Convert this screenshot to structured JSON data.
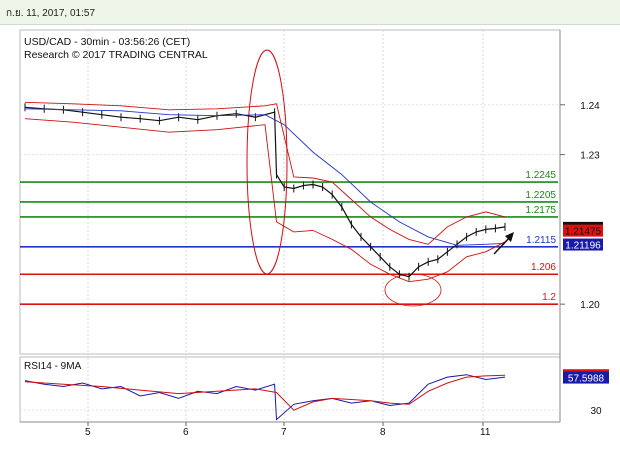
{
  "header": {
    "timestamp": "ก.ย. 11, 2017, 01:57"
  },
  "chart_data": [
    {
      "type": "line",
      "title": "USD/CAD - 30min - 03:56:26 (CET)",
      "subtitle": "Research © 2017 TRADING CENTRAL",
      "ylim": [
        1.19,
        1.255
      ],
      "y_ticks": [
        1.24,
        1.23,
        1.2
      ],
      "x_ticks": [
        "5",
        "6",
        "7",
        "8",
        "11"
      ],
      "levels": [
        {
          "label": "1.2245",
          "value": 1.2245,
          "color": "#1a8a1a"
        },
        {
          "label": "1.2205",
          "value": 1.2205,
          "color": "#1a8a1a"
        },
        {
          "label": "1.2175",
          "value": 1.2175,
          "color": "#1a8a1a"
        },
        {
          "label": "1.2115",
          "value": 1.2115,
          "color": "#2233cc"
        },
        {
          "label": "1.206",
          "value": 1.206,
          "color": "#dd1111"
        },
        {
          "label": "1.2",
          "value": 1.2,
          "color": "#dd1111"
        }
      ],
      "price_tags": [
        {
          "label": "1.2153",
          "value": 1.2153,
          "bg": "#111111",
          "fg": "#ffffff"
        },
        {
          "label": "1.21475",
          "value": 1.21475,
          "bg": "#dd1111",
          "fg": "#111111"
        },
        {
          "label": "1.21196",
          "value": 1.21196,
          "bg": "#1a1aaa",
          "fg": "#ffffff"
        }
      ],
      "series": [
        {
          "name": "price",
          "color": "#111111",
          "x": [
            0,
            0.2,
            0.4,
            0.6,
            0.8,
            1,
            1.2,
            1.4,
            1.6,
            1.8,
            2,
            2.2,
            2.4,
            2.6,
            2.62,
            2.7,
            2.8,
            2.9,
            3,
            3.1,
            3.2,
            3.3,
            3.4,
            3.5,
            3.6,
            3.7,
            3.8,
            3.9,
            4,
            4.1,
            4.2,
            4.3,
            4.4,
            4.5,
            4.6,
            4.7,
            4.8,
            4.9,
            5
          ],
          "values": [
            1.2395,
            1.2392,
            1.239,
            1.2385,
            1.238,
            1.2375,
            1.2372,
            1.2368,
            1.2375,
            1.237,
            1.2378,
            1.2382,
            1.2375,
            1.2385,
            1.226,
            1.2235,
            1.2232,
            1.2238,
            1.224,
            1.2235,
            1.222,
            1.2195,
            1.216,
            1.2135,
            1.2115,
            1.2095,
            1.2075,
            1.206,
            1.2055,
            1.2075,
            1.2085,
            1.209,
            1.2105,
            1.212,
            1.2135,
            1.2145,
            1.215,
            1.2152,
            1.2155
          ]
        },
        {
          "name": "ma-blue",
          "color": "#2233cc",
          "x": [
            0,
            0.5,
            1,
            1.5,
            2,
            2.5,
            2.7,
            3,
            3.3,
            3.6,
            3.9,
            4.2,
            4.5,
            4.8,
            5
          ],
          "values": [
            1.2392,
            1.239,
            1.2388,
            1.238,
            1.2378,
            1.238,
            1.236,
            1.2305,
            1.226,
            1.2205,
            1.2165,
            1.2135,
            1.2118,
            1.212,
            1.2122
          ]
        },
        {
          "name": "band-upper",
          "color": "#cc1111",
          "x": [
            0,
            0.5,
            1,
            1.5,
            2,
            2.5,
            2.62,
            2.8,
            3,
            3.2,
            3.4,
            3.6,
            3.8,
            4,
            4.2,
            4.4,
            4.6,
            4.8,
            5
          ],
          "values": [
            1.2405,
            1.2402,
            1.2398,
            1.239,
            1.2392,
            1.2398,
            1.2402,
            1.2255,
            1.2253,
            1.2245,
            1.221,
            1.2175,
            1.215,
            1.213,
            1.212,
            1.2155,
            1.2175,
            1.2185,
            1.2175
          ]
        },
        {
          "name": "band-lower",
          "color": "#cc1111",
          "x": [
            0,
            0.5,
            1,
            1.5,
            2,
            2.5,
            2.62,
            2.8,
            3,
            3.2,
            3.4,
            3.6,
            3.8,
            4,
            4.2,
            4.4,
            4.6,
            4.8,
            5
          ],
          "values": [
            1.2372,
            1.2365,
            1.2355,
            1.2345,
            1.235,
            1.236,
            1.2165,
            1.2145,
            1.2148,
            1.213,
            1.211,
            1.208,
            1.206,
            1.2045,
            1.205,
            1.2065,
            1.2095,
            1.2105,
            1.2125
          ]
        }
      ]
    },
    {
      "type": "line",
      "title": "RSI14 - 9MA",
      "ylim": [
        20,
        75
      ],
      "y_ticks": [
        30
      ],
      "value_tags": [
        {
          "label": "59.5864",
          "value": 59.5864,
          "bg": "#dd1111",
          "fg": "#111111"
        },
        {
          "label": "57.5988",
          "value": 57.5988,
          "bg": "#1a1aaa",
          "fg": "#ffffff"
        }
      ],
      "series": [
        {
          "name": "rsi",
          "color": "#1a1aaa",
          "x": [
            0,
            0.2,
            0.4,
            0.6,
            0.8,
            1,
            1.2,
            1.4,
            1.6,
            1.8,
            2,
            2.2,
            2.4,
            2.6,
            2.62,
            2.8,
            3,
            3.2,
            3.4,
            3.6,
            3.8,
            4,
            4.2,
            4.4,
            4.6,
            4.8,
            5
          ],
          "values": [
            55,
            52,
            50,
            53,
            48,
            50,
            42,
            45,
            40,
            46,
            44,
            50,
            47,
            52,
            22,
            35,
            38,
            40,
            36,
            38,
            34,
            36,
            52,
            58,
            60,
            56,
            58
          ]
        },
        {
          "name": "rsi-ma",
          "color": "#cc1111",
          "x": [
            0,
            0.4,
            0.8,
            1.2,
            1.6,
            2,
            2.4,
            2.62,
            2.8,
            3,
            3.2,
            3.4,
            3.6,
            3.8,
            4,
            4.2,
            4.4,
            4.6,
            4.8,
            5
          ],
          "values": [
            54,
            52,
            50,
            47,
            44,
            46,
            48,
            45,
            30,
            37,
            40,
            39,
            38,
            36,
            35,
            46,
            53,
            58,
            59,
            59.5
          ]
        }
      ]
    }
  ],
  "colors": {
    "header_bg": "#eef6ea",
    "grid": "#d9d9d9",
    "ellipse": "#cc1111"
  }
}
